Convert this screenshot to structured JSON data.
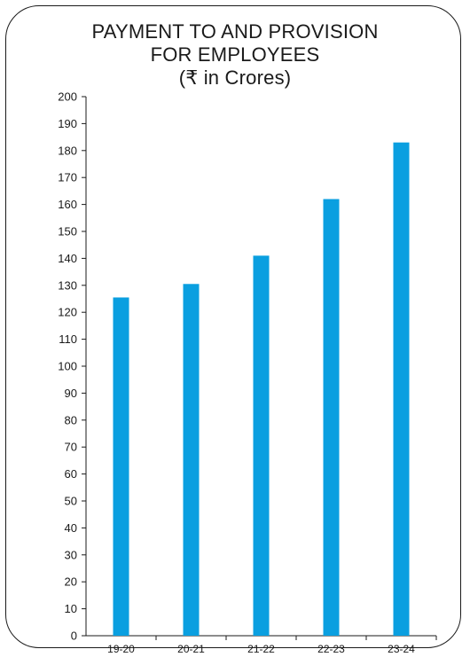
{
  "chart_data": {
    "type": "bar",
    "title_lines": [
      "PAYMENT TO AND PROVISION",
      "FOR EMPLOYEES",
      "(₹ in Crores)"
    ],
    "categories": [
      "19-20",
      "20-21",
      "21-22",
      "22-23",
      "23-24"
    ],
    "values": [
      125.5,
      130.5,
      141,
      162,
      183
    ],
    "ylim": [
      0,
      200
    ],
    "ytick_step": 10,
    "yticks": [
      "0",
      "10",
      "20",
      "30",
      "40",
      "50",
      "60",
      "70",
      "80",
      "90",
      "100",
      "110",
      "120",
      "130",
      "140",
      "150",
      "160",
      "170",
      "180",
      "190",
      "200"
    ],
    "grid": false,
    "bar_color": "#0a9fe0"
  }
}
